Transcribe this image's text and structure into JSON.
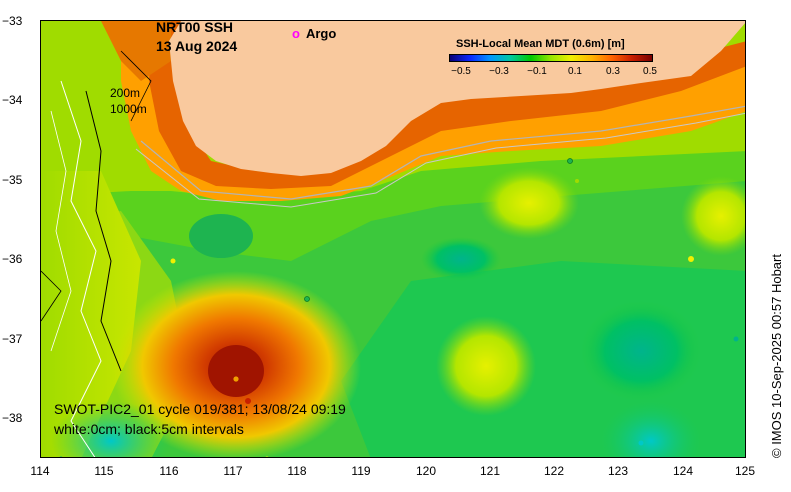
{
  "title": {
    "line1": "NRT00 SSH",
    "line2": "13 Aug 2024"
  },
  "legend": {
    "argo_marker": "o",
    "argo_label": "Argo",
    "argo_color": "#ff00ff"
  },
  "depth_contours": {
    "line1": "200m",
    "line2": "1000m"
  },
  "colorbar": {
    "title": "SSH-Local Mean MDT (0.6m) [m]",
    "ticks": [
      "−0.5",
      "−0.3",
      "−0.1",
      "0.1",
      "0.3",
      "0.5"
    ],
    "range": [
      -0.5,
      0.5
    ]
  },
  "swot": {
    "line1": "SWOT-PIC2_01 cycle 019/381; 13/08/24 09:19",
    "line2": "white:0cm; black:5cm intervals"
  },
  "credit": "© IMOS 10-Sep-2025 00:57 Hobart",
  "axes": {
    "x_ticks": [
      "114",
      "115",
      "116",
      "117",
      "118",
      "119",
      "120",
      "121",
      "122",
      "123",
      "124",
      "125"
    ],
    "y_ticks": [
      "−33",
      "−34",
      "−35",
      "−36",
      "−37",
      "−38"
    ],
    "xlim": [
      114,
      125
    ],
    "ylim": [
      -38.5,
      -33
    ]
  },
  "colors": {
    "land": "#f9c99e",
    "sea_mid": "#5ad21e",
    "high_anomaly": "#b41e00",
    "low_anomaly": "#00b48c"
  }
}
